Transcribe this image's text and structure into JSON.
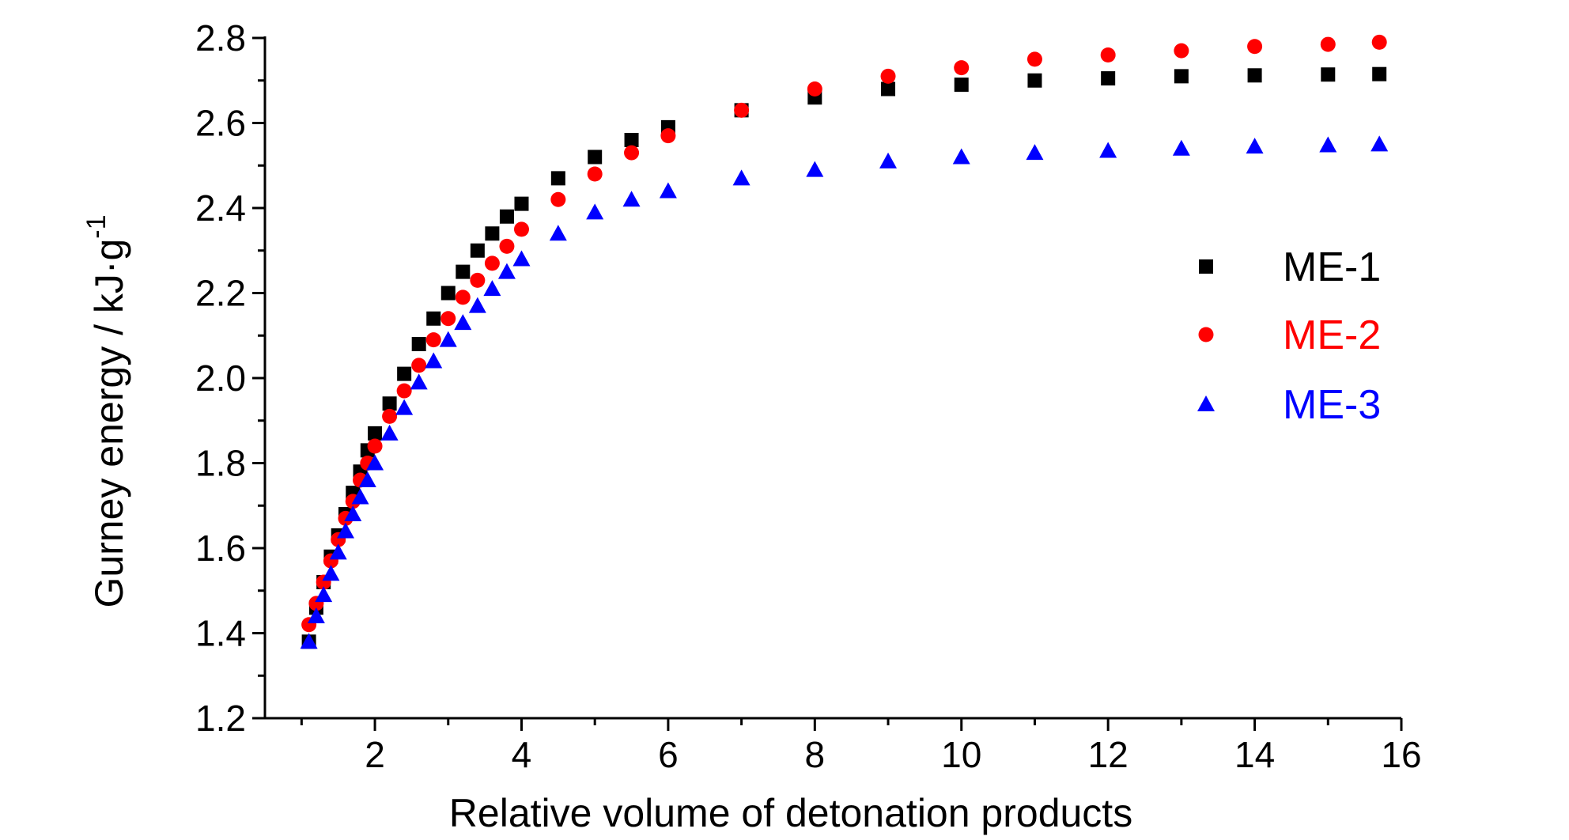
{
  "chart_data": {
    "type": "scatter",
    "title": "",
    "xlabel": "Relative volume of detonation products",
    "ylabel": "Gurney energy / kJ·g",
    "ylabel_superscript": "-1",
    "xlim": [
      0.5,
      16
    ],
    "ylim": [
      1.2,
      2.8
    ],
    "xticks": [
      "2",
      "4",
      "6",
      "8",
      "10",
      "12",
      "14",
      "16"
    ],
    "yticks": [
      "1.2",
      "1.4",
      "1.6",
      "1.8",
      "2.0",
      "2.2",
      "2.4",
      "2.6",
      "2.8"
    ],
    "grid": false,
    "legend_position": "right",
    "series": [
      {
        "name": "ME-1",
        "marker": "square",
        "color": "#000000",
        "x": [
          1.1,
          1.2,
          1.3,
          1.4,
          1.5,
          1.6,
          1.7,
          1.8,
          1.9,
          2.0,
          2.2,
          2.4,
          2.6,
          2.8,
          3.0,
          3.2,
          3.4,
          3.6,
          3.8,
          4.0,
          4.5,
          5.0,
          5.5,
          6.0,
          7.0,
          8.0,
          9.0,
          10.0,
          11.0,
          12.0,
          13.0,
          14.0,
          15.0,
          15.7
        ],
        "y": [
          1.38,
          1.46,
          1.52,
          1.58,
          1.63,
          1.68,
          1.73,
          1.78,
          1.83,
          1.87,
          1.94,
          2.01,
          2.08,
          2.14,
          2.2,
          2.25,
          2.3,
          2.34,
          2.38,
          2.41,
          2.47,
          2.52,
          2.56,
          2.59,
          2.63,
          2.66,
          2.68,
          2.69,
          2.7,
          2.705,
          2.71,
          2.712,
          2.714,
          2.715
        ]
      },
      {
        "name": "ME-2",
        "marker": "circle",
        "color": "#ff0000",
        "x": [
          1.1,
          1.2,
          1.3,
          1.4,
          1.5,
          1.6,
          1.7,
          1.8,
          1.9,
          2.0,
          2.2,
          2.4,
          2.6,
          2.8,
          3.0,
          3.2,
          3.4,
          3.6,
          3.8,
          4.0,
          4.5,
          5.0,
          5.5,
          6.0,
          7.0,
          8.0,
          9.0,
          10.0,
          11.0,
          12.0,
          13.0,
          14.0,
          15.0,
          15.7
        ],
        "y": [
          1.42,
          1.47,
          1.52,
          1.57,
          1.62,
          1.67,
          1.71,
          1.76,
          1.8,
          1.84,
          1.91,
          1.97,
          2.03,
          2.09,
          2.14,
          2.19,
          2.23,
          2.27,
          2.31,
          2.35,
          2.42,
          2.48,
          2.53,
          2.57,
          2.63,
          2.68,
          2.71,
          2.73,
          2.75,
          2.76,
          2.77,
          2.78,
          2.785,
          2.79
        ]
      },
      {
        "name": "ME-3",
        "marker": "triangle",
        "color": "#0000ff",
        "x": [
          1.1,
          1.2,
          1.3,
          1.4,
          1.5,
          1.6,
          1.7,
          1.8,
          1.9,
          2.0,
          2.2,
          2.4,
          2.6,
          2.8,
          3.0,
          3.2,
          3.4,
          3.6,
          3.8,
          4.0,
          4.5,
          5.0,
          5.5,
          6.0,
          7.0,
          8.0,
          9.0,
          10.0,
          11.0,
          12.0,
          13.0,
          14.0,
          15.0,
          15.7
        ],
        "y": [
          1.38,
          1.44,
          1.49,
          1.54,
          1.59,
          1.64,
          1.68,
          1.72,
          1.76,
          1.8,
          1.87,
          1.93,
          1.99,
          2.04,
          2.09,
          2.13,
          2.17,
          2.21,
          2.25,
          2.28,
          2.34,
          2.39,
          2.42,
          2.44,
          2.47,
          2.49,
          2.51,
          2.52,
          2.53,
          2.535,
          2.54,
          2.545,
          2.548,
          2.55
        ]
      }
    ]
  }
}
